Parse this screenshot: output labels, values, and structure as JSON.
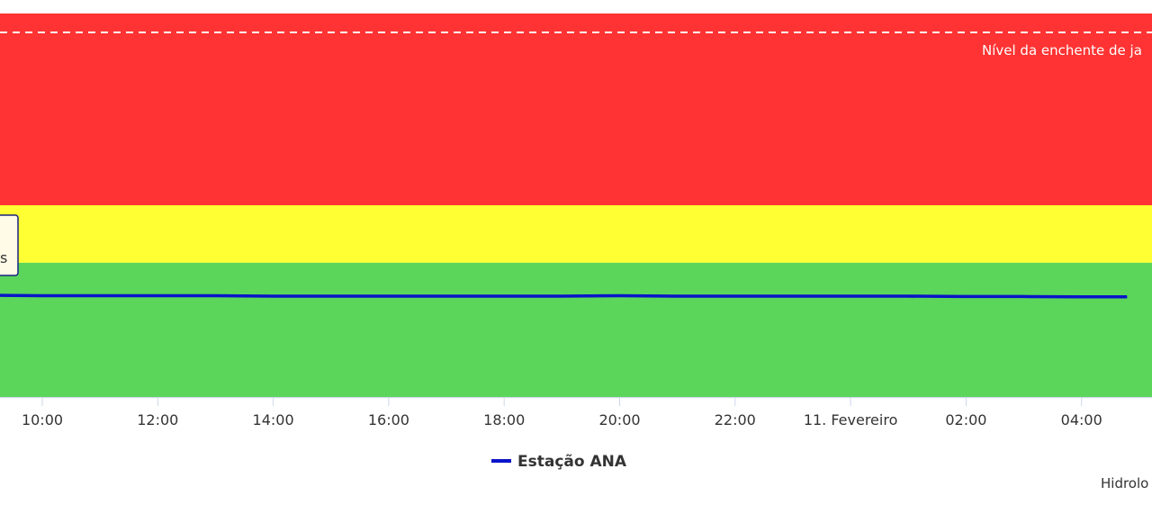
{
  "chart_data": {
    "type": "line",
    "x_ticks": [
      "10:00",
      "12:00",
      "14:00",
      "16:00",
      "18:00",
      "20:00",
      "22:00",
      "11. Fevereiro",
      "02:00",
      "04:00"
    ],
    "bands": [
      {
        "name": "red",
        "color": "#ff3333",
        "range_frac": [
          0.0,
          0.5
        ]
      },
      {
        "name": "yellow",
        "color": "#ffff33",
        "range_frac": [
          0.5,
          0.65
        ]
      },
      {
        "name": "green",
        "color": "#5bd65b",
        "range_frac": [
          0.65,
          1.0
        ]
      }
    ],
    "plot_lines": [
      {
        "label": "Nível da enchente de ja",
        "color": "#ffffff",
        "style": "dash",
        "level_frac": 0.05
      }
    ],
    "series": [
      {
        "name": "Estação ANA",
        "color": "#0a14c8",
        "x": [
          "09:10",
          "10:00",
          "11:00",
          "12:00",
          "13:00",
          "14:00",
          "15:00",
          "16:00",
          "17:00",
          "18:00",
          "19:00",
          "20:00",
          "21:00",
          "22:00",
          "23:00",
          "00:00",
          "01:00",
          "02:00",
          "03:00",
          "04:00",
          "04:50"
        ],
        "level_frac": [
          0.735,
          0.736,
          0.736,
          0.736,
          0.736,
          0.737,
          0.737,
          0.737,
          0.737,
          0.737,
          0.737,
          0.736,
          0.737,
          0.737,
          0.737,
          0.737,
          0.737,
          0.738,
          0.738,
          0.739,
          0.739
        ]
      }
    ],
    "tooltip": {
      "lines": [
        "",
        "s"
      ]
    },
    "legend": {
      "position": "bottom-center",
      "label": "Estação ANA"
    },
    "credit": "Hidrolo"
  }
}
